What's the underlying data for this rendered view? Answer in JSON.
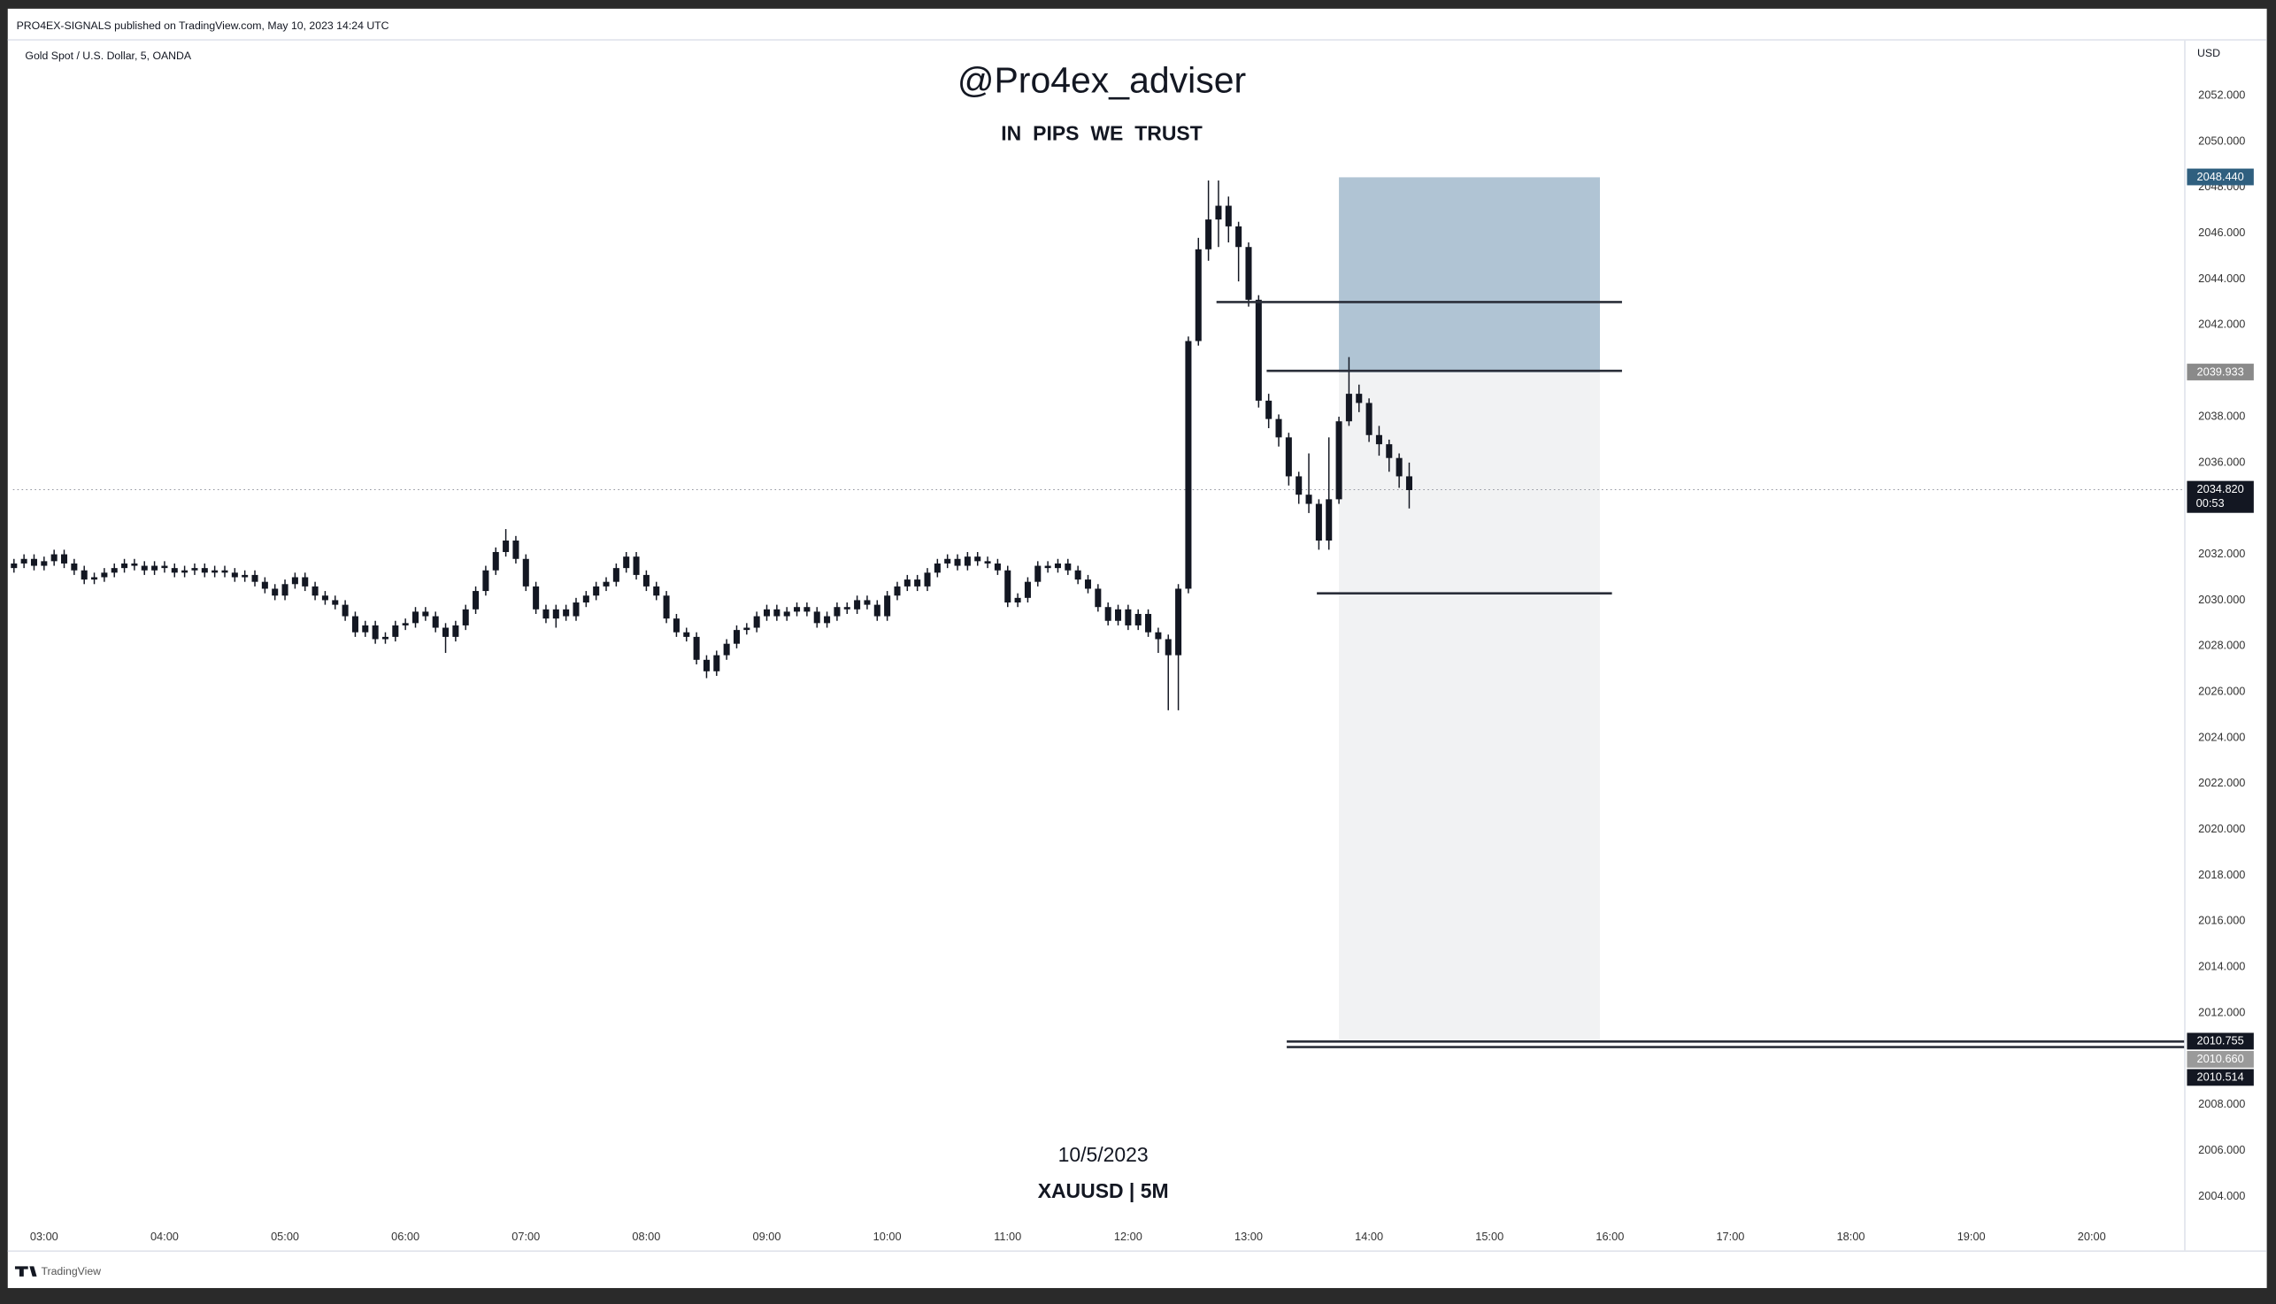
{
  "header": "PRO4EX-SIGNALS published on TradingView.com, May 10, 2023 14:24 UTC",
  "symbol": "Gold Spot / U.S. Dollar, 5, OANDA",
  "currency": "USD",
  "footer": "TradingView",
  "chart_data": {
    "type": "candlestick",
    "title": "@Pro4ex_adviser",
    "subtitle": "IN PIPS WE TRUST",
    "annotations": [
      "10/5/2023",
      "XAUUSD | 5M"
    ],
    "color": "#131722",
    "grid": false,
    "x": [
      165,
      170,
      175,
      180,
      185,
      190,
      195,
      200,
      205,
      210,
      215,
      220,
      225,
      230,
      235,
      240,
      245,
      250,
      255,
      260,
      265,
      270,
      275,
      280,
      285,
      290,
      295,
      300,
      305,
      310,
      315,
      320,
      325,
      330,
      335,
      340,
      345,
      350,
      355,
      360,
      365,
      370,
      375,
      380,
      385,
      390,
      395,
      400,
      405,
      410,
      415,
      420,
      425,
      430,
      435,
      440,
      445,
      450,
      455,
      460,
      465,
      470,
      475,
      480,
      485,
      490,
      495,
      500,
      505,
      510,
      515,
      520,
      525,
      530,
      535,
      540,
      545,
      550,
      555,
      560,
      565,
      570,
      575,
      580,
      585,
      590,
      595,
      600,
      605,
      610,
      615,
      620,
      625,
      630,
      635,
      640,
      645,
      650,
      655,
      660,
      665,
      670,
      675,
      680,
      685,
      690,
      695,
      700,
      705,
      710,
      715,
      720,
      725,
      730,
      735,
      740,
      745,
      750,
      755,
      760,
      765,
      770,
      775,
      780,
      785,
      790,
      795,
      800,
      805,
      810,
      815,
      820,
      825,
      830,
      835,
      840,
      845,
      850,
      855,
      860
    ],
    "open": [
      2031.4,
      2031.6,
      2031.8,
      2031.5,
      2031.7,
      2032.0,
      2031.6,
      2031.3,
      2030.9,
      2031.0,
      2031.2,
      2031.4,
      2031.6,
      2031.5,
      2031.3,
      2031.5,
      2031.4,
      2031.2,
      2031.3,
      2031.4,
      2031.2,
      2031.3,
      2031.2,
      2031.0,
      2031.1,
      2030.8,
      2030.5,
      2030.2,
      2030.7,
      2031.0,
      2030.6,
      2030.2,
      2030.0,
      2029.8,
      2029.3,
      2028.6,
      2028.9,
      2028.3,
      2028.4,
      2028.9,
      2029.0,
      2029.5,
      2029.3,
      2028.8,
      2028.4,
      2028.9,
      2029.6,
      2030.4,
      2031.3,
      2032.1,
      2032.6,
      2031.8,
      2030.6,
      2029.6,
      2029.2,
      2029.6,
      2029.3,
      2029.9,
      2030.2,
      2030.6,
      2030.8,
      2031.4,
      2031.9,
      2031.1,
      2030.6,
      2030.2,
      2029.2,
      2028.6,
      2028.4,
      2027.4,
      2026.9,
      2027.6,
      2028.1,
      2028.7,
      2028.8,
      2029.3,
      2029.6,
      2029.3,
      2029.5,
      2029.7,
      2029.5,
      2029.0,
      2029.3,
      2029.7,
      2029.6,
      2030.0,
      2029.8,
      2029.3,
      2030.2,
      2030.6,
      2030.9,
      2030.6,
      2031.2,
      2031.6,
      2031.8,
      2031.5,
      2031.9,
      2031.7,
      2031.6,
      2031.3,
      2029.9,
      2030.1,
      2030.8,
      2031.5,
      2031.4,
      2031.6,
      2031.3,
      2030.9,
      2030.5,
      2029.7,
      2029.1,
      2029.6,
      2028.9,
      2029.4,
      2028.6,
      2028.3,
      2027.6,
      2030.5,
      2041.3,
      2045.3,
      2046.6,
      2047.2,
      2046.3,
      2045.4,
      2043.1,
      2038.7,
      2037.9,
      2037.1,
      2035.4,
      2034.6,
      2034.2,
      2032.6,
      2034.4,
      2037.8,
      2039.0,
      2038.6,
      2037.2,
      2036.8,
      2036.2,
      2035.4
    ],
    "high": [
      2031.8,
      2032.0,
      2032.0,
      2031.9,
      2032.2,
      2032.2,
      2031.8,
      2031.5,
      2031.2,
      2031.4,
      2031.6,
      2031.8,
      2031.8,
      2031.7,
      2031.7,
      2031.7,
      2031.6,
      2031.5,
      2031.6,
      2031.6,
      2031.5,
      2031.5,
      2031.4,
      2031.3,
      2031.3,
      2031.0,
      2030.7,
      2030.9,
      2031.2,
      2031.2,
      2030.8,
      2030.4,
      2030.2,
      2030.0,
      2029.5,
      2029.1,
      2029.1,
      2028.6,
      2029.1,
      2029.2,
      2029.7,
      2029.7,
      2029.5,
      2029.0,
      2029.1,
      2029.8,
      2030.6,
      2031.5,
      2032.3,
      2033.1,
      2032.8,
      2032.0,
      2030.8,
      2029.8,
      2029.8,
      2029.8,
      2030.1,
      2030.4,
      2030.8,
      2031.0,
      2031.6,
      2032.1,
      2032.1,
      2031.3,
      2030.8,
      2030.4,
      2029.4,
      2028.8,
      2028.6,
      2027.6,
      2027.8,
      2028.3,
      2028.9,
      2029.0,
      2029.5,
      2029.8,
      2029.8,
      2029.7,
      2029.9,
      2029.9,
      2029.7,
      2029.5,
      2029.9,
      2029.9,
      2030.2,
      2030.2,
      2030.0,
      2030.4,
      2030.8,
      2031.1,
      2031.1,
      2031.4,
      2031.8,
      2032.0,
      2032.0,
      2032.1,
      2032.1,
      2031.9,
      2031.8,
      2031.5,
      2030.3,
      2031.0,
      2031.7,
      2031.7,
      2031.8,
      2031.8,
      2031.5,
      2031.1,
      2030.7,
      2029.9,
      2029.8,
      2029.8,
      2029.6,
      2029.6,
      2028.8,
      2028.5,
      2030.7,
      2041.5,
      2045.8,
      2048.3,
      2048.3,
      2047.6,
      2046.5,
      2045.6,
      2043.3,
      2039.0,
      2038.1,
      2037.3,
      2035.6,
      2036.4,
      2034.4,
      2037.1,
      2038.0,
      2040.6,
      2039.4,
      2038.8,
      2037.6,
      2037.0,
      2036.4,
      2036.0
    ],
    "low": [
      2031.2,
      2031.4,
      2031.3,
      2031.3,
      2031.5,
      2031.4,
      2031.1,
      2030.7,
      2030.7,
      2030.8,
      2031.0,
      2031.2,
      2031.3,
      2031.1,
      2031.1,
      2031.2,
      2031.0,
      2031.0,
      2031.1,
      2031.0,
      2031.0,
      2031.0,
      2030.8,
      2030.8,
      2030.6,
      2030.3,
      2030.0,
      2030.0,
      2030.5,
      2030.4,
      2030.0,
      2029.8,
      2029.6,
      2029.1,
      2028.4,
      2028.4,
      2028.1,
      2028.1,
      2028.2,
      2028.7,
      2028.8,
      2029.1,
      2028.6,
      2027.7,
      2028.2,
      2028.7,
      2029.4,
      2030.2,
      2031.1,
      2031.9,
      2031.6,
      2030.4,
      2029.4,
      2029.0,
      2028.8,
      2029.1,
      2029.1,
      2029.7,
      2030.0,
      2030.4,
      2030.6,
      2031.2,
      2030.9,
      2030.4,
      2030.0,
      2029.0,
      2028.4,
      2028.2,
      2027.2,
      2026.6,
      2026.7,
      2027.4,
      2027.9,
      2028.5,
      2028.6,
      2029.1,
      2029.1,
      2029.1,
      2029.3,
      2029.3,
      2028.8,
      2028.8,
      2029.1,
      2029.4,
      2029.4,
      2029.6,
      2029.1,
      2029.1,
      2030.0,
      2030.4,
      2030.4,
      2030.4,
      2031.0,
      2031.4,
      2031.3,
      2031.3,
      2031.5,
      2031.4,
      2031.1,
      2029.7,
      2029.7,
      2029.9,
      2030.6,
      2031.2,
      2031.2,
      2031.1,
      2030.7,
      2030.3,
      2029.5,
      2028.9,
      2028.9,
      2028.7,
      2028.7,
      2028.4,
      2027.7,
      2025.2,
      2025.2,
      2030.3,
      2041.1,
      2044.8,
      2045.4,
      2045.6,
      2043.9,
      2042.8,
      2038.4,
      2037.5,
      2036.7,
      2035.0,
      2034.2,
      2033.8,
      2032.2,
      2032.2,
      2034.2,
      2037.6,
      2038.2,
      2036.9,
      2036.3,
      2035.6,
      2034.9,
      2034.0
    ],
    "close": [
      2031.6,
      2031.8,
      2031.5,
      2031.7,
      2032.0,
      2031.6,
      2031.3,
      2030.9,
      2031.0,
      2031.2,
      2031.4,
      2031.6,
      2031.5,
      2031.3,
      2031.5,
      2031.4,
      2031.2,
      2031.3,
      2031.4,
      2031.2,
      2031.3,
      2031.2,
      2031.0,
      2031.1,
      2030.8,
      2030.5,
      2030.2,
      2030.7,
      2031.0,
      2030.6,
      2030.2,
      2030.0,
      2029.8,
      2029.3,
      2028.6,
      2028.9,
      2028.3,
      2028.4,
      2028.9,
      2029.0,
      2029.5,
      2029.3,
      2028.8,
      2028.4,
      2028.9,
      2029.6,
      2030.4,
      2031.3,
      2032.1,
      2032.6,
      2031.8,
      2030.6,
      2029.6,
      2029.2,
      2029.6,
      2029.3,
      2029.9,
      2030.2,
      2030.6,
      2030.8,
      2031.4,
      2031.9,
      2031.1,
      2030.6,
      2030.2,
      2029.2,
      2028.6,
      2028.4,
      2027.4,
      2026.9,
      2027.6,
      2028.1,
      2028.7,
      2028.8,
      2029.3,
      2029.6,
      2029.3,
      2029.5,
      2029.7,
      2029.5,
      2029.0,
      2029.3,
      2029.7,
      2029.6,
      2030.0,
      2029.8,
      2029.3,
      2030.2,
      2030.6,
      2030.9,
      2030.6,
      2031.2,
      2031.6,
      2031.8,
      2031.5,
      2031.9,
      2031.7,
      2031.6,
      2031.3,
      2029.9,
      2030.1,
      2030.8,
      2031.5,
      2031.4,
      2031.6,
      2031.3,
      2030.9,
      2030.5,
      2029.7,
      2029.1,
      2029.6,
      2028.9,
      2029.4,
      2028.6,
      2028.3,
      2027.6,
      2030.5,
      2041.3,
      2045.3,
      2046.6,
      2047.2,
      2046.3,
      2045.4,
      2043.1,
      2038.7,
      2037.9,
      2037.1,
      2035.4,
      2034.6,
      2034.2,
      2032.6,
      2034.4,
      2037.8,
      2039.0,
      2038.6,
      2037.2,
      2036.8,
      2036.2,
      2035.4,
      2034.8
    ],
    "xlim": [
      164.5,
      1246
    ],
    "ylim": [
      2001.65,
      2054.4
    ],
    "xticks": [
      {
        "value": 180,
        "label": "03:00"
      },
      {
        "value": 240,
        "label": "04:00"
      },
      {
        "value": 300,
        "label": "05:00"
      },
      {
        "value": 360,
        "label": "06:00"
      },
      {
        "value": 420,
        "label": "07:00"
      },
      {
        "value": 480,
        "label": "08:00"
      },
      {
        "value": 540,
        "label": "09:00"
      },
      {
        "value": 600,
        "label": "10:00"
      },
      {
        "value": 660,
        "label": "11:00"
      },
      {
        "value": 720,
        "label": "12:00"
      },
      {
        "value": 780,
        "label": "13:00"
      },
      {
        "value": 840,
        "label": "14:00"
      },
      {
        "value": 900,
        "label": "15:00"
      },
      {
        "value": 960,
        "label": "16:00"
      },
      {
        "value": 1020,
        "label": "17:00"
      },
      {
        "value": 1080,
        "label": "18:00"
      },
      {
        "value": 1140,
        "label": "19:00"
      },
      {
        "value": 1200,
        "label": "20:00"
      }
    ],
    "yticks": [
      {
        "value": 2052,
        "label": "2052.000"
      },
      {
        "value": 2050,
        "label": "2050.000"
      },
      {
        "value": 2048,
        "label": "2048.000"
      },
      {
        "value": 2046,
        "label": "2046.000"
      },
      {
        "value": 2044,
        "label": "2044.000"
      },
      {
        "value": 2042,
        "label": "2042.000"
      },
      {
        "value": 2040,
        "label": "2040.000"
      },
      {
        "value": 2038,
        "label": "2038.000"
      },
      {
        "value": 2036,
        "label": "2036.000"
      },
      {
        "value": 2034,
        "label": "2034.000"
      },
      {
        "value": 2032,
        "label": "2032.000"
      },
      {
        "value": 2030,
        "label": "2030.000"
      },
      {
        "value": 2028,
        "label": "2028.000"
      },
      {
        "value": 2026,
        "label": "2026.000"
      },
      {
        "value": 2024,
        "label": "2024.000"
      },
      {
        "value": 2022,
        "label": "2022.000"
      },
      {
        "value": 2020,
        "label": "2020.000"
      },
      {
        "value": 2018,
        "label": "2018.000"
      },
      {
        "value": 2016,
        "label": "2016.000"
      },
      {
        "value": 2014,
        "label": "2014.000"
      },
      {
        "value": 2012,
        "label": "2012.000"
      },
      {
        "value": 2010,
        "label": "2010.000"
      },
      {
        "value": 2008,
        "label": "2008.000"
      },
      {
        "value": 2006,
        "label": "2006.000"
      },
      {
        "value": 2004,
        "label": "2004.000"
      }
    ],
    "position": {
      "x": [
        825,
        955
      ],
      "target": 2048.44,
      "entry": 2039.933,
      "stop": 2010.755,
      "target_color": "#b0c4d4",
      "stop_color": "#f1f2f3"
    },
    "levels": [
      {
        "y": 2043.0,
        "x": [
          764,
          966
        ]
      },
      {
        "y": 2040.0,
        "x": [
          789,
          966
        ]
      },
      {
        "y": 2030.3,
        "x": [
          814,
          961
        ]
      },
      {
        "y": 2010.755,
        "x": [
          799,
          1246
        ]
      },
      {
        "y": 2010.514,
        "x": [
          799,
          1246
        ]
      }
    ],
    "last_price": 2034.82,
    "countdown": "00:53",
    "price_labels": [
      {
        "value": 2048.44,
        "label": "2048.440",
        "color": "#2f5f7f"
      },
      {
        "value": 2039.933,
        "label": "2039.933",
        "color": "#8a8a8a"
      },
      {
        "value": 2034.82,
        "label": "2034.820",
        "color": "#131722"
      },
      {
        "value": 2010.755,
        "label": "2010.755",
        "color": "#131722"
      },
      {
        "value": 2010.66,
        "label": "2010.660",
        "color": "#9a9a9a"
      },
      {
        "value": 2010.514,
        "label": "2010.514",
        "color": "#131722"
      }
    ]
  }
}
